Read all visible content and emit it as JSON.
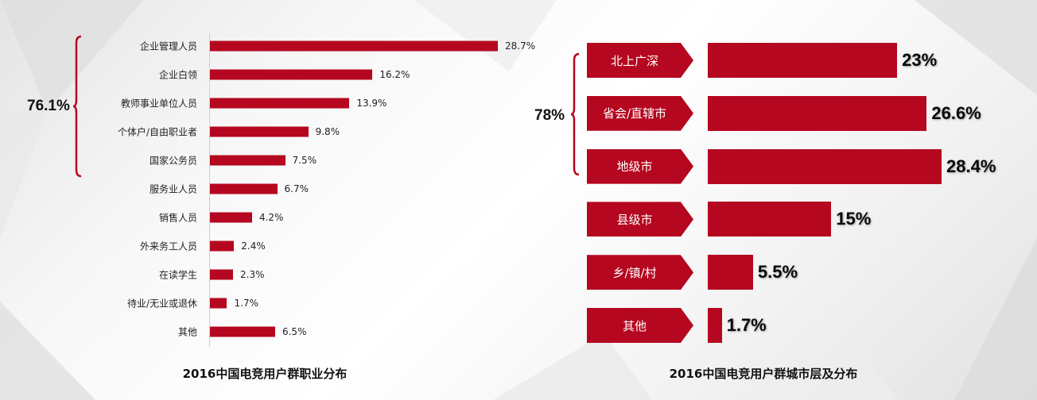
{
  "chart_data": [
    {
      "type": "bar",
      "orientation": "horizontal",
      "title": "2016中国电竞用户群职业分布",
      "categories": [
        "企业管理人员",
        "企业白领",
        "教师事业单位人员",
        "个体户/自由职业者",
        "国家公务员",
        "服务业人员",
        "销售人员",
        "外来务工人员",
        "在读学生",
        "待业/无业或退休",
        "其他"
      ],
      "values": [
        28.7,
        16.2,
        13.9,
        9.8,
        7.5,
        6.7,
        4.2,
        2.4,
        2.3,
        1.7,
        6.5
      ],
      "value_labels": [
        "28.7%",
        "16.2%",
        "13.9%",
        "9.8%",
        "7.5%",
        "6.7%",
        "4.2%",
        "2.4%",
        "2.3%",
        "1.7%",
        "6.5%"
      ],
      "group_annotation": {
        "label": "76.1%",
        "from_index": 0,
        "to_index": 4
      },
      "xlim": [
        0,
        30
      ],
      "grid": false,
      "bar_color": "#b5071f"
    },
    {
      "type": "bar",
      "orientation": "horizontal",
      "title": "2016中国电竞用户群城市层及分布",
      "categories": [
        "北上广深",
        "省会/直辖市",
        "地级市",
        "县级市",
        "乡/镇/村",
        "其他"
      ],
      "values": [
        23,
        26.6,
        28.4,
        15,
        5.5,
        1.7
      ],
      "value_labels": [
        "23%",
        "26.6%",
        "28.4%",
        "15%",
        "5.5%",
        "1.7%"
      ],
      "group_annotation": {
        "label": "78%",
        "from_index": 0,
        "to_index": 2
      },
      "xlim": [
        0,
        30
      ],
      "grid": false,
      "bar_color": "#b5071f"
    }
  ]
}
